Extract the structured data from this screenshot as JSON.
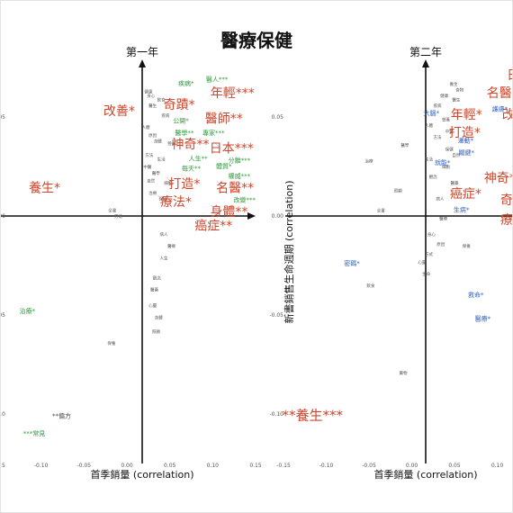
{
  "title": "醫療保健",
  "colors": {
    "positive": "#d0452a",
    "green": "#2e9a3a",
    "blue": "#2f5fbf",
    "neutral": "#444444",
    "axis": "#111111"
  },
  "chart_data": [
    {
      "type": "scatter",
      "panel_title": "第一年",
      "xlabel": "首季銷量 (correlation)",
      "ylabel": "",
      "xlim": [
        -0.15,
        0.15
      ],
      "ylim": [
        -0.12,
        0.08
      ],
      "xticks": [
        "-0.15",
        "-0.10",
        "-0.05",
        "0.00",
        "0.05",
        "0.10",
        "0.15"
      ],
      "yticks": [],
      "points": [
        {
          "label": "醫人***",
          "x": 0.105,
          "y": 0.068,
          "size": "small",
          "color": "green"
        },
        {
          "label": "疾病*",
          "x": 0.069,
          "y": 0.066,
          "size": "small",
          "color": "green"
        },
        {
          "label": "年輕***",
          "x": 0.123,
          "y": 0.06,
          "size": "big",
          "color": "red"
        },
        {
          "label": "奇蹟*",
          "x": 0.061,
          "y": 0.054,
          "size": "big",
          "color": "red"
        },
        {
          "label": "改善*",
          "x": -0.009,
          "y": 0.051,
          "size": "big",
          "color": "red"
        },
        {
          "label": "公開*",
          "x": 0.063,
          "y": 0.047,
          "size": "small",
          "color": "green"
        },
        {
          "label": "醫師**",
          "x": 0.113,
          "y": 0.047,
          "size": "big",
          "color": "red"
        },
        {
          "label": "醫學**",
          "x": 0.067,
          "y": 0.041,
          "size": "small",
          "color": "green"
        },
        {
          "label": "專家***",
          "x": 0.101,
          "y": 0.041,
          "size": "small",
          "color": "green"
        },
        {
          "label": "神奇**",
          "x": 0.074,
          "y": 0.034,
          "size": "big",
          "color": "red"
        },
        {
          "label": "日本***",
          "x": 0.122,
          "y": 0.032,
          "size": "big",
          "color": "red"
        },
        {
          "label": "人生**",
          "x": 0.083,
          "y": 0.028,
          "size": "small",
          "color": "green"
        },
        {
          "label": "分離***",
          "x": 0.131,
          "y": 0.027,
          "size": "small",
          "color": "green"
        },
        {
          "label": "每天**",
          "x": 0.075,
          "y": 0.023,
          "size": "small",
          "color": "green"
        },
        {
          "label": "體質*",
          "x": 0.113,
          "y": 0.024,
          "size": "small",
          "color": "green"
        },
        {
          "label": "權威***",
          "x": 0.131,
          "y": 0.019,
          "size": "small",
          "color": "green"
        },
        {
          "label": "養生*",
          "x": -0.096,
          "y": 0.012,
          "size": "big",
          "color": "red"
        },
        {
          "label": "打造*",
          "x": 0.067,
          "y": 0.014,
          "size": "big",
          "color": "red"
        },
        {
          "label": "名醫**",
          "x": 0.126,
          "y": 0.012,
          "size": "big",
          "color": "red"
        },
        {
          "label": "改變***",
          "x": 0.137,
          "y": 0.007,
          "size": "small",
          "color": "green"
        },
        {
          "label": "療法*",
          "x": 0.057,
          "y": 0.005,
          "size": "big",
          "color": "red"
        },
        {
          "label": "身體**",
          "x": 0.119,
          "y": 0.0,
          "size": "big",
          "color": "red"
        },
        {
          "label": "癌症**",
          "x": 0.101,
          "y": -0.007,
          "size": "big",
          "color": "red"
        },
        {
          "label": "治療*",
          "x": -0.116,
          "y": -0.049,
          "size": "small",
          "color": "green"
        },
        {
          "label": "**偏方",
          "x": -0.076,
          "y": -0.102,
          "size": "small",
          "color": "neutral"
        },
        {
          "label": "***常見",
          "x": -0.108,
          "y": -0.111,
          "size": "small",
          "color": "green"
        }
      ]
    },
    {
      "type": "scatter",
      "panel_title": "第二年",
      "xlabel": "首季銷量 (correlation)",
      "ylabel": "新書銷售生命週期 (correlation)",
      "xlim": [
        -0.15,
        0.15
      ],
      "ylim": [
        -0.12,
        0.08
      ],
      "xticks": [
        "-0.15",
        "-0.10",
        "-0.05",
        "0.00",
        "0.05",
        "0.10",
        "0.15"
      ],
      "yticks": [
        "0.05",
        "0.00",
        "-0.05",
        "-0.10"
      ],
      "points": [
        {
          "label": "日本***",
          "x": 0.137,
          "y": 0.069,
          "size": "big",
          "color": "red"
        },
        {
          "label": "名醫*",
          "x": 0.106,
          "y": 0.06,
          "size": "big",
          "color": "red"
        },
        {
          "label": "年輕*",
          "x": 0.064,
          "y": 0.049,
          "size": "big",
          "color": "red"
        },
        {
          "label": "改善*",
          "x": 0.124,
          "y": 0.049,
          "size": "big",
          "color": "red"
        },
        {
          "label": "大腦*",
          "x": 0.023,
          "y": 0.051,
          "size": "small",
          "color": "blue"
        },
        {
          "label": "護膚*",
          "x": 0.103,
          "y": 0.053,
          "size": "small",
          "color": "blue"
        },
        {
          "label": "打造*",
          "x": 0.062,
          "y": 0.04,
          "size": "big",
          "color": "red"
        },
        {
          "label": "身體*",
          "x": 0.14,
          "y": 0.036,
          "size": "big",
          "color": "red"
        },
        {
          "label": "運動*",
          "x": 0.063,
          "y": 0.037,
          "size": "small",
          "color": "blue"
        },
        {
          "label": "關鍵*",
          "x": 0.064,
          "y": 0.031,
          "size": "small",
          "color": "blue"
        },
        {
          "label": "就能*",
          "x": 0.036,
          "y": 0.026,
          "size": "small",
          "color": "blue"
        },
        {
          "label": "醫師*",
          "x": 0.135,
          "y": 0.023,
          "size": "big",
          "color": "red"
        },
        {
          "label": "神奇*",
          "x": 0.103,
          "y": 0.017,
          "size": "big",
          "color": "red"
        },
        {
          "label": "癌症*",
          "x": 0.063,
          "y": 0.009,
          "size": "big",
          "color": "red"
        },
        {
          "label": "奇蹟*",
          "x": 0.122,
          "y": 0.006,
          "size": "big",
          "color": "red"
        },
        {
          "label": "生病*",
          "x": 0.058,
          "y": 0.002,
          "size": "small",
          "color": "blue"
        },
        {
          "label": "療法*",
          "x": 0.122,
          "y": -0.004,
          "size": "big",
          "color": "red"
        },
        {
          "label": "密碼*",
          "x": -0.07,
          "y": -0.025,
          "size": "small",
          "color": "blue"
        },
        {
          "label": "救命*",
          "x": 0.075,
          "y": -0.041,
          "size": "small",
          "color": "blue"
        },
        {
          "label": "醫療*",
          "x": 0.083,
          "y": -0.053,
          "size": "small",
          "color": "blue"
        },
        {
          "label": "**養生***",
          "x": -0.116,
          "y": -0.103,
          "size": "huge",
          "color": "red"
        }
      ]
    }
  ],
  "background_words": [
    [
      "健康",
      0.025,
      0.062
    ],
    [
      "身心",
      0.028,
      0.06
    ],
    [
      "飲食",
      0.04,
      0.058
    ],
    [
      "醫生",
      0.03,
      0.055
    ],
    [
      "疾病",
      0.045,
      0.05
    ],
    [
      "人體",
      0.022,
      0.044
    ],
    [
      "原因",
      0.03,
      0.04
    ],
    [
      "身體",
      0.036,
      0.037
    ],
    [
      "營養",
      0.052,
      0.036
    ],
    [
      "方法",
      0.026,
      0.03
    ],
    [
      "生活",
      0.04,
      0.028
    ],
    [
      "中醫",
      0.024,
      0.024
    ],
    [
      "醫學",
      0.034,
      0.021
    ],
    [
      "自然",
      0.028,
      0.017
    ],
    [
      "細胞",
      0.048,
      0.016
    ],
    [
      "治療",
      0.03,
      0.011
    ],
    [
      "保健",
      0.042,
      0.008
    ],
    [
      "全書",
      -0.017,
      0.002
    ],
    [
      "方法",
      -0.01,
      -0.001
    ],
    [
      "病人",
      0.043,
      -0.01
    ],
    [
      "醫療",
      0.052,
      -0.016
    ],
    [
      "人生",
      0.043,
      -0.022
    ],
    [
      "觀念",
      0.035,
      -0.032
    ],
    [
      "醫藥",
      0.032,
      -0.038
    ],
    [
      "心靈",
      0.03,
      -0.046
    ],
    [
      "身體",
      0.037,
      -0.052
    ],
    [
      "照顧",
      0.034,
      -0.059
    ],
    [
      "保養",
      -0.018,
      -0.065
    ]
  ],
  "background_words2": [
    [
      "養生",
      0.049,
      0.066
    ],
    [
      "食物",
      0.056,
      0.063
    ],
    [
      "健康",
      0.038,
      0.06
    ],
    [
      "醫生",
      0.052,
      0.058
    ],
    [
      "疾病",
      0.03,
      0.055
    ],
    [
      "營養",
      0.04,
      0.048
    ],
    [
      "人體",
      0.02,
      0.045
    ],
    [
      "中醫",
      0.044,
      0.042
    ],
    [
      "方法",
      0.03,
      0.039
    ],
    [
      "醫學",
      -0.008,
      0.035
    ],
    [
      "保健",
      0.044,
      0.033
    ],
    [
      "自然",
      0.052,
      0.03
    ],
    [
      "生活",
      0.02,
      0.028
    ],
    [
      "細胞",
      0.04,
      0.024
    ],
    [
      "治療",
      -0.05,
      0.027
    ],
    [
      "觀念",
      0.025,
      0.019
    ],
    [
      "醫藥",
      0.05,
      0.016
    ],
    [
      "照顧",
      -0.016,
      0.012
    ],
    [
      "病人",
      0.033,
      0.008
    ],
    [
      "全書",
      -0.036,
      0.002
    ],
    [
      "醫療",
      0.037,
      -0.002
    ],
    [
      "身心",
      0.023,
      -0.01
    ],
    [
      "原因",
      0.034,
      -0.015
    ],
    [
      "方式",
      0.02,
      -0.02
    ],
    [
      "心靈",
      0.012,
      -0.024
    ],
    [
      "保養",
      0.064,
      -0.016
    ],
    [
      "生命",
      0.017,
      -0.03
    ],
    [
      "飲食",
      -0.048,
      -0.036
    ],
    [
      "藥物",
      -0.01,
      -0.08
    ]
  ]
}
